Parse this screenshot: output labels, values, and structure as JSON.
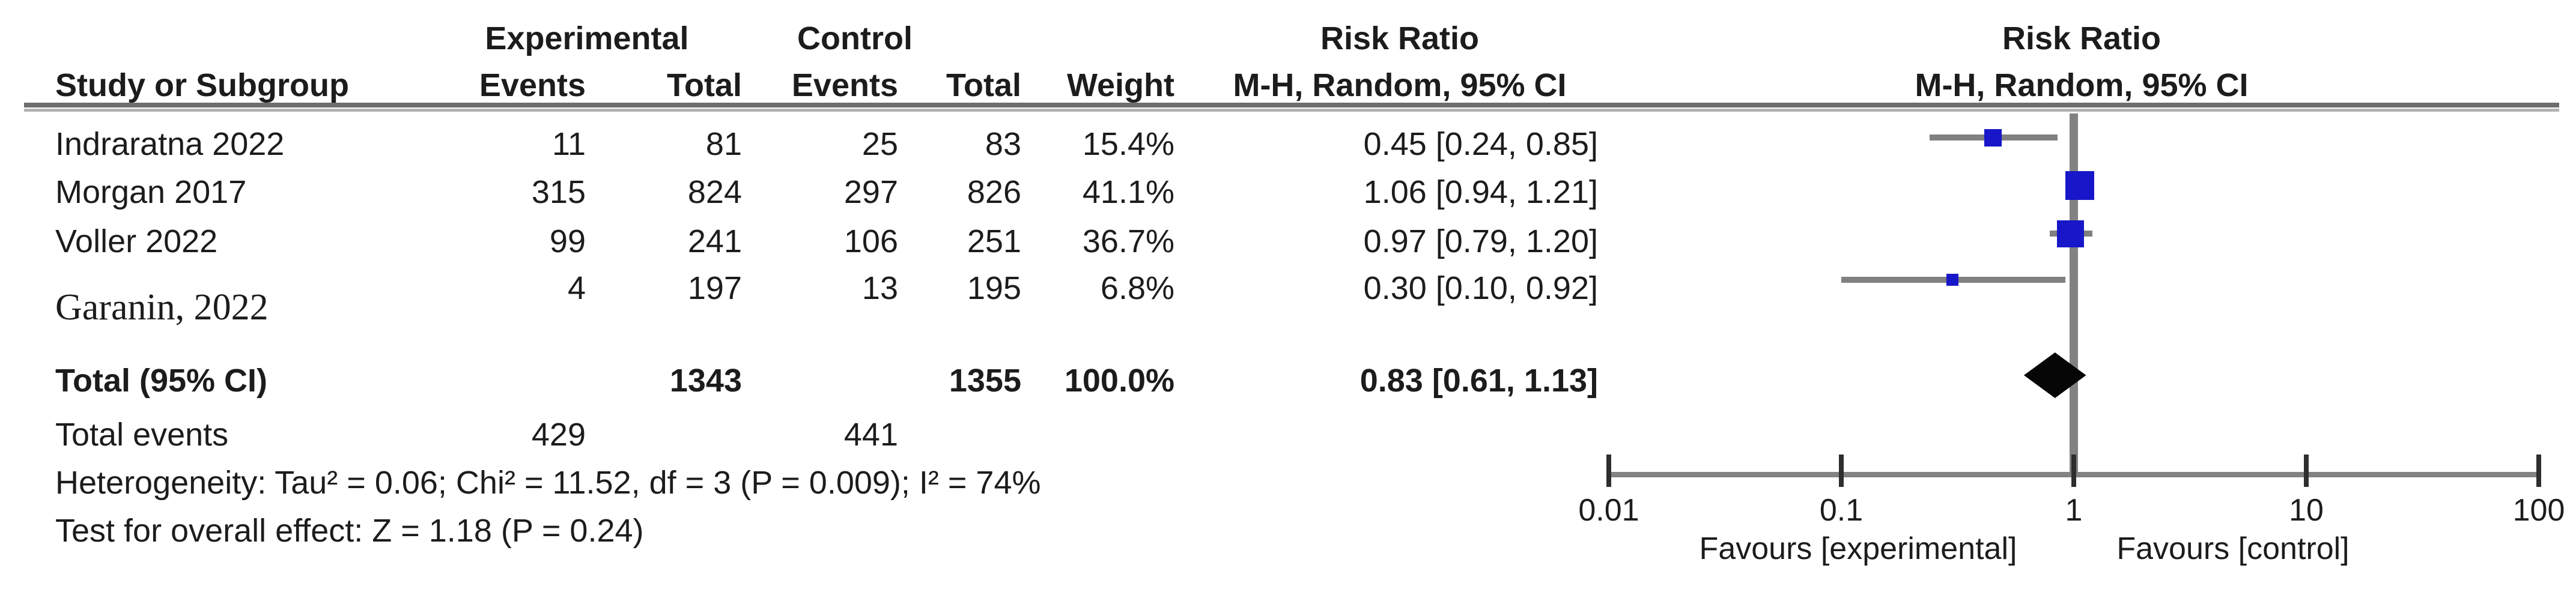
{
  "table": {
    "header1": {
      "experimental": "Experimental",
      "control": "Control",
      "risk_ratio_left": "Risk Ratio",
      "risk_ratio_right": "Risk Ratio"
    },
    "header2": {
      "study": "Study or Subgroup",
      "events_exp": "Events",
      "total_exp": "Total",
      "events_ctl": "Events",
      "total_ctl": "Total",
      "weight": "Weight",
      "mh_ci_left": "M-H, Random, 95% CI",
      "mh_ci_right": "M-H, Random, 95% CI"
    },
    "rows": [
      {
        "study": "Indraratna 2022",
        "events_exp": "11",
        "total_exp": "81",
        "events_ctl": "25",
        "total_ctl": "83",
        "weight": "15.4%",
        "ci": "0.45 [0.24, 0.85]"
      },
      {
        "study": "Morgan 2017",
        "events_exp": "315",
        "total_exp": "824",
        "events_ctl": "297",
        "total_ctl": "826",
        "weight": "41.1%",
        "ci": "1.06 [0.94, 1.21]"
      },
      {
        "study": "Voller 2022",
        "events_exp": "99",
        "total_exp": "241",
        "events_ctl": "106",
        "total_ctl": "251",
        "weight": "36.7%",
        "ci": "0.97 [0.79, 1.20]"
      },
      {
        "study": "Garanin, 2022",
        "events_exp": "4",
        "total_exp": "197",
        "events_ctl": "13",
        "total_ctl": "195",
        "weight": "6.8%",
        "ci": "0.30 [0.10, 0.92]"
      }
    ],
    "total_row": {
      "label": "Total (95% CI)",
      "total_exp": "1343",
      "total_ctl": "1355",
      "weight": "100.0%",
      "ci": "0.83 [0.61, 1.13]"
    },
    "total_events": {
      "label": "Total events",
      "events_exp": "429",
      "events_ctl": "441"
    },
    "heterogeneity": "Heterogeneity: Tau² = 0.06; Chi² = 11.52, df = 3 (P = 0.009); I² = 74%",
    "overall_effect": "Test for overall effect: Z = 1.18 (P = 0.24)"
  },
  "axis": {
    "tick_labels": [
      "0.01",
      "0.1",
      "1",
      "10",
      "100"
    ],
    "favours_left": "Favours [experimental]",
    "favours_right": "Favours [control]"
  },
  "colors": {
    "square_blue": "#1717c9",
    "diamond_black": "#060606",
    "line_gray": "#828282",
    "whisker_gray": "#808080",
    "text_black": "#1c1c1c"
  },
  "chart_data": {
    "type": "forest",
    "effect_measure": "Risk Ratio",
    "method": "M-H, Random, 95% CI",
    "x_scale": "log",
    "xlim": [
      0.01,
      100
    ],
    "x_ticks": [
      0.01,
      0.1,
      1,
      10,
      100
    ],
    "null_line": 1,
    "studies": [
      {
        "name": "Indraratna 2022",
        "events_exp": 11,
        "total_exp": 81,
        "events_ctl": 25,
        "total_ctl": 83,
        "weight_pct": 15.4,
        "rr": 0.45,
        "ci_low": 0.24,
        "ci_high": 0.85
      },
      {
        "name": "Morgan 2017",
        "events_exp": 315,
        "total_exp": 824,
        "events_ctl": 297,
        "total_ctl": 826,
        "weight_pct": 41.1,
        "rr": 1.06,
        "ci_low": 0.94,
        "ci_high": 1.21
      },
      {
        "name": "Voller 2022",
        "events_exp": 99,
        "total_exp": 241,
        "events_ctl": 106,
        "total_ctl": 251,
        "weight_pct": 36.7,
        "rr": 0.97,
        "ci_low": 0.79,
        "ci_high": 1.2
      },
      {
        "name": "Garanin, 2022",
        "events_exp": 4,
        "total_exp": 197,
        "events_ctl": 13,
        "total_ctl": 195,
        "weight_pct": 6.8,
        "rr": 0.3,
        "ci_low": 0.1,
        "ci_high": 0.92
      }
    ],
    "total": {
      "label": "Total (95% CI)",
      "total_exp": 1343,
      "total_ctl": 1355,
      "weight_pct": 100.0,
      "rr": 0.83,
      "ci_low": 0.61,
      "ci_high": 1.13,
      "total_events_exp": 429,
      "total_events_ctl": 441
    },
    "heterogeneity": {
      "tau2": 0.06,
      "chi2": 11.52,
      "df": 3,
      "p": 0.009,
      "i2_pct": 74
    },
    "overall_effect": {
      "z": 1.18,
      "p": 0.24
    },
    "favours": [
      "Favours [experimental]",
      "Favours [control]"
    ]
  }
}
